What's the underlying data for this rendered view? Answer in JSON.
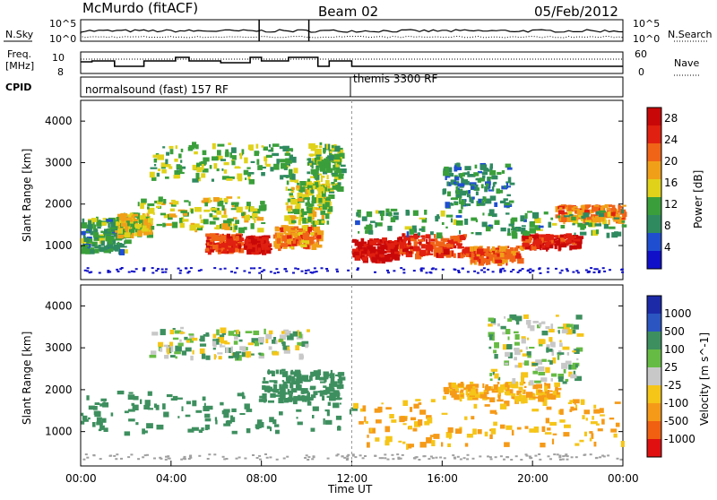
{
  "header": {
    "station": "McMurdo (fitACF)",
    "beam": "Beam 02",
    "date": "05/Feb/2012"
  },
  "params": {
    "nsky_label": "N.Sky",
    "nsearch_label": "N.Search",
    "freq_label": "Freq.",
    "freq_unit": "[MHz]",
    "nave_label": "Nave",
    "cpid_label": "CPID",
    "noise_ticks_left": [
      "10^5",
      "10^0"
    ],
    "noise_ticks_right": [
      "10^5",
      "10^0"
    ],
    "freq_ticks_left": [
      "10",
      "8"
    ],
    "nave_ticks_right": [
      "60",
      "0"
    ],
    "cpid_segments": [
      {
        "label": "normalsound (fast) 157 RF",
        "start": "00:00",
        "end": "12:00"
      },
      {
        "label": "themis 3300 RF",
        "start": "12:00",
        "end": "24:00"
      }
    ]
  },
  "colors": {
    "power_scale": [
      "#1010c8",
      "#1f4fd0",
      "#2f8a60",
      "#3a9f3a",
      "#e0d21a",
      "#f0a018",
      "#f06418",
      "#e02010",
      "#c80808"
    ],
    "velocity_scale": [
      "#1c2aa8",
      "#2b55c0",
      "#3e8f5f",
      "#66bb44",
      "#c8c8c8",
      "#f5c518",
      "#f59a18",
      "#f06010",
      "#e01010"
    ],
    "ground_scatter": "#a0a0a0"
  },
  "chart_data": [
    {
      "type": "heatmap",
      "panel": "power",
      "title": "",
      "xlabel": "Time UT",
      "ylabel": "Slant Range [km]",
      "x_ticks": [
        "00:00",
        "04:00",
        "08:00",
        "12:00",
        "16:00",
        "20:00",
        "00:00"
      ],
      "xlim_hours": [
        0,
        24
      ],
      "y_ticks": [
        1000,
        2000,
        3000,
        4000
      ],
      "ylim": [
        180,
        4500
      ],
      "colorbar": {
        "label": "Power [dB]",
        "ticks": [
          4,
          8,
          12,
          16,
          20,
          24,
          28
        ],
        "range": [
          0,
          30
        ]
      },
      "features": [
        {
          "t0": 0.0,
          "t1": 2.0,
          "r0": 900,
          "r1": 1700,
          "level": 10
        },
        {
          "t0": 1.5,
          "t1": 3.0,
          "r0": 1300,
          "r1": 1800,
          "level": 15
        },
        {
          "t0": 2.5,
          "t1": 8.0,
          "r0": 1400,
          "r1": 2200,
          "level": 14
        },
        {
          "t0": 5.5,
          "t1": 7.0,
          "r0": 900,
          "r1": 1300,
          "level": 24
        },
        {
          "t0": 7.2,
          "t1": 8.2,
          "r0": 900,
          "r1": 1250,
          "level": 27
        },
        {
          "t0": 8.5,
          "t1": 10.5,
          "r0": 1000,
          "r1": 1500,
          "level": 20
        },
        {
          "t0": 9.0,
          "t1": 11.0,
          "r0": 1600,
          "r1": 2600,
          "level": 14
        },
        {
          "t0": 10.0,
          "t1": 11.5,
          "r0": 2300,
          "r1": 3500,
          "level": 12
        },
        {
          "t0": 12.0,
          "t1": 14.0,
          "r0": 700,
          "r1": 1200,
          "level": 28
        },
        {
          "t0": 14.0,
          "t1": 17.0,
          "r0": 800,
          "r1": 1300,
          "level": 24
        },
        {
          "t0": 17.0,
          "t1": 19.5,
          "r0": 650,
          "r1": 1000,
          "level": 22
        },
        {
          "t0": 19.5,
          "t1": 22.0,
          "r0": 1000,
          "r1": 1300,
          "level": 26
        },
        {
          "t0": 21.0,
          "t1": 24.0,
          "r0": 1600,
          "r1": 2000,
          "level": 20
        },
        {
          "t0": 12.0,
          "t1": 24.0,
          "r0": 1300,
          "r1": 1900,
          "level": 10
        },
        {
          "t0": 3.0,
          "t1": 9.5,
          "r0": 2600,
          "r1": 3500,
          "level": 12
        },
        {
          "t0": 16.0,
          "t1": 19.0,
          "r0": 2000,
          "r1": 3000,
          "level": 9
        }
      ]
    },
    {
      "type": "heatmap",
      "panel": "velocity",
      "title": "",
      "xlabel": "Time UT",
      "ylabel": "Slant Range [km]",
      "x_ticks": [
        "00:00",
        "04:00",
        "08:00",
        "12:00",
        "16:00",
        "20:00",
        "00:00"
      ],
      "xlim_hours": [
        0,
        24
      ],
      "y_ticks": [
        1000,
        2000,
        3000,
        4000
      ],
      "ylim": [
        180,
        4500
      ],
      "colorbar": {
        "label": "Velocity [m s^-1]",
        "ticks": [
          1000,
          500,
          100,
          25,
          -25,
          -100,
          -500,
          -1000
        ]
      },
      "features": [
        {
          "t0": 0.0,
          "t1": 12.0,
          "r0": 1000,
          "r1": 2000,
          "value": 150
        },
        {
          "t0": 8.0,
          "t1": 11.5,
          "r0": 1800,
          "r1": 2500,
          "value": 150
        },
        {
          "t0": 12.0,
          "t1": 24.0,
          "r0": 700,
          "r1": 1800,
          "value": -250
        },
        {
          "t0": 16.0,
          "t1": 21.0,
          "r0": 1800,
          "r1": 2200,
          "value": -250
        },
        {
          "t0": 3.0,
          "t1": 10.0,
          "r0": 2800,
          "r1": 3500,
          "value": 0
        },
        {
          "t0": 18.0,
          "t1": 22.0,
          "r0": 2200,
          "r1": 3800,
          "value": 0
        }
      ]
    }
  ]
}
